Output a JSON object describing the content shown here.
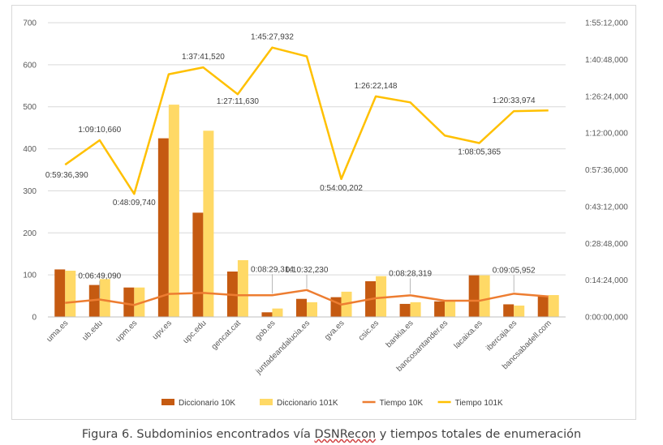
{
  "caption": {
    "prefix": "Figura 6. Subdominios encontrados vía ",
    "brand": "DSNRecon",
    "suffix": " y tiempos totales de enumeración"
  },
  "chart_data": {
    "type": "bar",
    "categories": [
      "uma.es",
      "ub.edu",
      "upm.es",
      "upv.es",
      "upc.edu",
      "gencat.cat",
      "gob.es",
      "juntadeandalucia.es",
      "gva.es",
      "csic.es",
      "bankia.es",
      "bancosantander.es",
      "lacaixa.es",
      "ibercaja.es",
      "bancsabadell.com"
    ],
    "y_left": {
      "ylim": [
        0,
        700
      ],
      "ticks": [
        "0",
        "100",
        "200",
        "300",
        "400",
        "500",
        "600",
        "700"
      ]
    },
    "y_right": {
      "ylim_seconds": [
        0,
        6912
      ],
      "ticks": [
        "0:00:00,000",
        "0:14:24,000",
        "0:28:48,000",
        "0:43:12,000",
        "0:57:36,000",
        "1:12:00,000",
        "1:26:24,000",
        "1:40:48,000",
        "1:55:12,000"
      ]
    },
    "series": [
      {
        "name": "Diccionario 10K",
        "kind": "bar",
        "axis": "left",
        "color": "#C55A11",
        "values": [
          113,
          76,
          70,
          425,
          248,
          108,
          11,
          43,
          47,
          85,
          31,
          37,
          99,
          30,
          51
        ]
      },
      {
        "name": "Diccionario 101K",
        "kind": "bar",
        "axis": "left",
        "color": "#FFD966",
        "values": [
          110,
          90,
          70,
          505,
          443,
          135,
          20,
          35,
          60,
          97,
          35,
          37,
          99,
          27,
          52
        ]
      },
      {
        "name": "Tiempo 10K",
        "kind": "line",
        "axis": "right",
        "color": "#ED7D31",
        "values": [
          "0:05:30",
          "0:06:49",
          "0:04:40",
          "0:09:00",
          "0:09:25",
          "0:08:30",
          "0:08:29",
          "0:10:32",
          "0:04:50",
          "0:07:20",
          "0:08:28",
          "0:06:20",
          "0:06:20",
          "0:09:06",
          "0:08:00"
        ]
      },
      {
        "name": "Tiempo 101K",
        "kind": "line",
        "axis": "right",
        "color": "#FFC000",
        "values": [
          "0:59:36",
          "1:09:11",
          "0:48:10",
          "1:35:00",
          "1:37:42",
          "1:27:12",
          "1:45:28",
          "1:42:00",
          "0:54:00",
          "1:26:22",
          "1:24:00",
          "1:11:00",
          "1:08:05",
          "1:20:34",
          "1:20:50"
        ]
      }
    ],
    "annotations": [
      {
        "series": "Tiempo 101K",
        "index": 0,
        "text": "0:59:36,390"
      },
      {
        "series": "Tiempo 101K",
        "index": 1,
        "text": "1:09:10,660"
      },
      {
        "series": "Tiempo 101K",
        "index": 2,
        "text": "0:48:09,740"
      },
      {
        "series": "Tiempo 101K",
        "index": 4,
        "text": "1:37:41,520"
      },
      {
        "series": "Tiempo 101K",
        "index": 5,
        "text": "1:27:11,630"
      },
      {
        "series": "Tiempo 101K",
        "index": 6,
        "text": "1:45:27,932"
      },
      {
        "series": "Tiempo 101K",
        "index": 8,
        "text": "0:54:00,202"
      },
      {
        "series": "Tiempo 101K",
        "index": 9,
        "text": "1:26:22,148"
      },
      {
        "series": "Tiempo 101K",
        "index": 12,
        "text": "1:08:05,365"
      },
      {
        "series": "Tiempo 101K",
        "index": 13,
        "text": "1:20:33,974"
      },
      {
        "series": "Tiempo 10K",
        "index": 1,
        "text": "0:06:49,090"
      },
      {
        "series": "Tiempo 10K",
        "index": 6,
        "text": "0:08:29,314"
      },
      {
        "series": "Tiempo 10K",
        "index": 7,
        "text": "0:10:32,230"
      },
      {
        "series": "Tiempo 10K",
        "index": 10,
        "text": "0:08:28,319"
      },
      {
        "series": "Tiempo 10K",
        "index": 13,
        "text": "0:09:05,952"
      }
    ],
    "legend_position": "bottom",
    "grid": true,
    "xlabel": "",
    "ylabel": ""
  }
}
